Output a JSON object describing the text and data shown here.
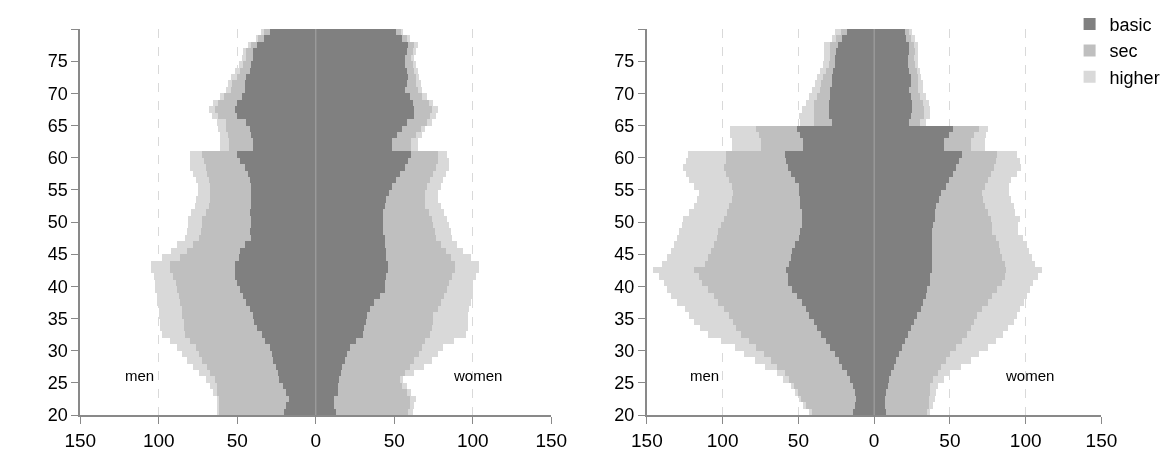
{
  "chart_data": [
    {
      "type": "bar",
      "orientation": "horizontal",
      "stacked": true,
      "grid": "x",
      "line_style": "dashed",
      "x": [
        20.5,
        21.5,
        22.5,
        23.5,
        24.5,
        25.5,
        26.5,
        27.5,
        28.5,
        29.5,
        30.5,
        31.5,
        32.5,
        33.5,
        34.5,
        35.5,
        36.5,
        37.5,
        38.5,
        39.5,
        40.5,
        41.5,
        42.5,
        43.5,
        44.5,
        45.5,
        46.5,
        47.5,
        48.5,
        49.5,
        50.5,
        51.5,
        52.5,
        53.5,
        54.5,
        55.5,
        56.5,
        57.5,
        58.5,
        59.5,
        60.5,
        61.5,
        62.5,
        63.5,
        64.5,
        65.5,
        66.5,
        67.5,
        68.5,
        69.5,
        70.5,
        71.5,
        72.5,
        73.5,
        74.5,
        75.5,
        76.5,
        77.5,
        78.5,
        79.5
      ],
      "xlim": [
        -150,
        150
      ],
      "xticks": [
        {
          "value": -150,
          "label": "150"
        },
        {
          "value": -100,
          "label": "100"
        },
        {
          "value": -50,
          "label": "50"
        },
        0,
        50,
        100,
        150
      ],
      "ylim": [
        20,
        80
      ],
      "yticks": [
        20,
        25,
        30,
        35,
        40,
        45,
        50,
        55,
        60,
        65,
        70,
        75,
        {
          "value": 80,
          "label": null
        }
      ],
      "ref_lines": [
        {
          "axis": "x",
          "value": 0,
          "color": "#a6a6a6"
        }
      ],
      "annotations": [
        "men",
        "women"
      ],
      "series": [
        {
          "color": "#808080",
          "values": [
            -20,
            -19,
            -17,
            -19,
            -21,
            -23,
            -24,
            -25,
            -27,
            -28,
            -29,
            -32,
            -34,
            -37,
            -39,
            -40,
            -42,
            -44,
            -46,
            -48,
            -50,
            -51,
            -51,
            -51,
            -49,
            -48,
            -45,
            -41,
            -42,
            -41,
            -41,
            -42,
            -41,
            -41,
            -41,
            -41,
            -42,
            -43,
            -45,
            -48,
            -50,
            -40,
            -40,
            -41,
            -42,
            -44,
            -50,
            -51,
            -50,
            -47,
            -45,
            -45,
            -44,
            -42,
            -41,
            -40,
            -40,
            -37,
            -33,
            -29
          ]
        },
        {
          "color": "#bfbfbf",
          "values": [
            -42,
            -43,
            -45,
            -44,
            -42,
            -41,
            -43,
            -44,
            -45,
            -46,
            -47,
            -48,
            -49,
            -47,
            -45,
            -45,
            -43,
            -42,
            -41,
            -40,
            -39,
            -40,
            -42,
            -42,
            -37,
            -34,
            -33,
            -33,
            -31,
            -31,
            -31,
            -28,
            -27,
            -26,
            -26,
            -26,
            -26,
            -26,
            -25,
            -23,
            -22,
            -15,
            -15,
            -15,
            -15,
            -13,
            -12,
            -13,
            -12,
            -11,
            -9,
            -8,
            -6,
            -6,
            -5,
            -4,
            -4,
            -4,
            -4,
            -4
          ]
        },
        {
          "color": "#d9d9d9",
          "values": [
            -1,
            -1,
            -1,
            -2,
            -4,
            -6,
            -7,
            -9,
            -10,
            -11,
            -12,
            -13,
            -15,
            -15,
            -15,
            -15,
            -15,
            -15,
            -14,
            -14,
            -13,
            -12,
            -12,
            -12,
            -12,
            -10,
            -10,
            -9,
            -9,
            -9,
            -9,
            -9,
            -9,
            -9,
            -8,
            -8,
            -8,
            -9,
            -10,
            -9,
            -8,
            -6,
            -6,
            -5,
            -5,
            -6,
            -4,
            -4,
            -3,
            -3,
            -3,
            -3,
            -4,
            -3,
            -3,
            -3,
            -2,
            -2,
            -1,
            -2
          ]
        },
        {
          "color": "#808080",
          "values": [
            13,
            12,
            12,
            14,
            14,
            15,
            16,
            17,
            19,
            20,
            22,
            26,
            30,
            31,
            32,
            33,
            35,
            37,
            41,
            44,
            44,
            45,
            46,
            46,
            45,
            45,
            44,
            44,
            43,
            43,
            43,
            43,
            44,
            45,
            47,
            49,
            51,
            54,
            57,
            59,
            61,
            49,
            49,
            52,
            55,
            58,
            63,
            63,
            62,
            60,
            57,
            58,
            59,
            58,
            57,
            57,
            58,
            59,
            55,
            51
          ]
        },
        {
          "color": "#bfbfbf",
          "values": [
            46,
            48,
            48,
            44,
            41,
            39,
            41,
            43,
            44,
            46,
            46,
            44,
            43,
            43,
            43,
            42,
            43,
            43,
            41,
            40,
            41,
            42,
            43,
            43,
            41,
            38,
            36,
            33,
            33,
            32,
            31,
            29,
            26,
            25,
            23,
            22,
            22,
            21,
            20,
            19,
            17,
            12,
            12,
            12,
            12,
            13,
            10,
            11,
            10,
            8,
            8,
            6,
            5,
            5,
            5,
            4,
            4,
            4,
            3,
            4
          ]
        },
        {
          "color": "#d9d9d9",
          "values": [
            3,
            3,
            4,
            3,
            3,
            2,
            6,
            9,
            11,
            12,
            13,
            18,
            23,
            23,
            22,
            22,
            20,
            19,
            18,
            16,
            15,
            15,
            15,
            15,
            13,
            11,
            10,
            10,
            10,
            10,
            10,
            10,
            10,
            8,
            8,
            9,
            8,
            8,
            8,
            7,
            6,
            4,
            4,
            4,
            3,
            3,
            4,
            4,
            3,
            3,
            3,
            3,
            2,
            2,
            2,
            2,
            2,
            2,
            2,
            1
          ]
        }
      ]
    },
    {
      "type": "bar",
      "orientation": "horizontal",
      "stacked": true,
      "legend": "top right",
      "grid": "x",
      "line_style": "dashed",
      "x": [
        20.5,
        21.5,
        22.5,
        23.5,
        24.5,
        25.5,
        26.5,
        27.5,
        28.5,
        29.5,
        30.5,
        31.5,
        32.5,
        33.5,
        34.5,
        35.5,
        36.5,
        37.5,
        38.5,
        39.5,
        40.5,
        41.5,
        42.5,
        43.5,
        44.5,
        45.5,
        46.5,
        47.5,
        48.5,
        49.5,
        50.5,
        51.5,
        52.5,
        53.5,
        54.5,
        55.5,
        56.5,
        57.5,
        58.5,
        59.5,
        60.5,
        61.5,
        62.5,
        63.5,
        64.5,
        65.5,
        66.5,
        67.5,
        68.5,
        69.5,
        70.5,
        71.5,
        72.5,
        73.5,
        74.5,
        75.5,
        76.5,
        77.5,
        78.5,
        79.5
      ],
      "xlim": [
        -150,
        150
      ],
      "xticks": [
        {
          "value": -150,
          "label": "150"
        },
        {
          "value": -100,
          "label": "100"
        },
        {
          "value": -50,
          "label": "50"
        },
        0,
        50,
        100,
        150
      ],
      "ylim": [
        20,
        80
      ],
      "yticks": [
        20,
        25,
        30,
        35,
        40,
        45,
        50,
        55,
        60,
        65,
        70,
        75,
        {
          "value": 80,
          "label": null
        }
      ],
      "ref_lines": [
        {
          "axis": "x",
          "value": 0,
          "color": "#a6a6a6"
        }
      ],
      "annotations": [
        "men",
        "women"
      ],
      "series": [
        {
          "name": "basic",
          "color": "#808080",
          "values": [
            -14,
            -13,
            -12,
            -13,
            -14,
            -16,
            -18,
            -21,
            -23,
            -26,
            -29,
            -32,
            -35,
            -38,
            -40,
            -43,
            -45,
            -48,
            -51,
            -54,
            -57,
            -57,
            -58,
            -56,
            -55,
            -54,
            -52,
            -50,
            -49,
            -48,
            -48,
            -48,
            -49,
            -49,
            -50,
            -50,
            -52,
            -55,
            -57,
            -58,
            -59,
            -47,
            -47,
            -49,
            -51,
            -28,
            -30,
            -30,
            -30,
            -29,
            -29,
            -28,
            -28,
            -27,
            -26,
            -26,
            -25,
            -24,
            -21,
            -18
          ]
        },
        {
          "name": "sec",
          "color": "#bfbfbf",
          "values": [
            -27,
            -32,
            -37,
            -38,
            -39,
            -40,
            -41,
            -43,
            -45,
            -47,
            -49,
            -51,
            -53,
            -53,
            -53,
            -53,
            -54,
            -55,
            -55,
            -56,
            -57,
            -59,
            -61,
            -56,
            -55,
            -54,
            -54,
            -54,
            -54,
            -53,
            -51,
            -49,
            -47,
            -45,
            -43,
            -44,
            -44,
            -43,
            -42,
            -40,
            -39,
            -28,
            -28,
            -27,
            -27,
            -12,
            -10,
            -10,
            -10,
            -9,
            -7,
            -7,
            -6,
            -5,
            -4,
            -3,
            -4,
            -5,
            -4,
            -4
          ]
        },
        {
          "name": "higher",
          "color": "#d9d9d9",
          "values": [
            -2,
            -2,
            -1,
            -1,
            -2,
            -4,
            -5,
            -8,
            -11,
            -13,
            -14,
            -18,
            -22,
            -24,
            -26,
            -26,
            -26,
            -27,
            -28,
            -27,
            -25,
            -26,
            -27,
            -28,
            -27,
            -26,
            -26,
            -26,
            -26,
            -26,
            -27,
            -25,
            -23,
            -23,
            -23,
            -25,
            -26,
            -26,
            -27,
            -26,
            -25,
            -19,
            -19,
            -19,
            -17,
            -9,
            -10,
            -8,
            -5,
            -5,
            -5,
            -4,
            -4,
            -4,
            -4,
            -4,
            -4,
            -4,
            -3,
            -4
          ]
        },
        {
          "color": "#808080",
          "values": [
            8,
            7,
            7,
            8,
            9,
            10,
            11,
            13,
            14,
            16,
            18,
            20,
            22,
            24,
            26,
            28,
            31,
            32,
            34,
            35,
            37,
            37,
            38,
            38,
            38,
            38,
            38,
            38,
            38,
            39,
            40,
            40,
            41,
            43,
            44,
            47,
            49,
            52,
            54,
            56,
            58,
            46,
            46,
            49,
            52,
            23,
            24,
            25,
            25,
            24,
            23,
            24,
            24,
            23,
            22,
            22,
            23,
            23,
            21,
            20
          ]
        },
        {
          "color": "#bfbfbf",
          "values": [
            27,
            29,
            29,
            29,
            28,
            29,
            31,
            31,
            33,
            34,
            36,
            38,
            39,
            40,
            40,
            40,
            40,
            43,
            44,
            46,
            47,
            49,
            49,
            48,
            46,
            45,
            44,
            42,
            40,
            39,
            37,
            35,
            32,
            29,
            27,
            26,
            26,
            25,
            25,
            24,
            23,
            18,
            18,
            17,
            17,
            7,
            9,
            8,
            7,
            6,
            6,
            5,
            5,
            5,
            5,
            4,
            4,
            3,
            3,
            3
          ]
        },
        {
          "color": "#d9d9d9",
          "values": [
            2,
            3,
            4,
            4,
            5,
            7,
            8,
            13,
            17,
            19,
            21,
            22,
            24,
            24,
            26,
            26,
            25,
            24,
            23,
            22,
            21,
            22,
            24,
            20,
            20,
            19,
            19,
            18,
            17,
            17,
            19,
            18,
            19,
            18,
            18,
            16,
            15,
            17,
            18,
            16,
            13,
            9,
            9,
            8,
            6,
            4,
            4,
            4,
            4,
            4,
            3,
            3,
            2,
            2,
            2,
            3,
            2,
            3,
            3,
            2
          ]
        }
      ]
    }
  ]
}
